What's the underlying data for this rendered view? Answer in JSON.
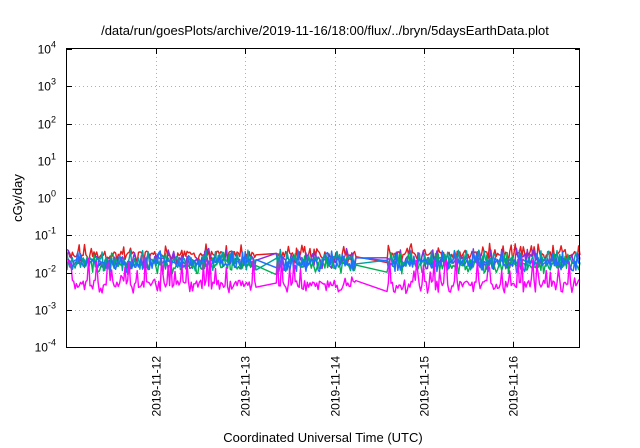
{
  "chart_data": {
    "type": "line",
    "title": "/data/run/goesPlots/archive/2019-11-16/18:00/flux/../bryn/5daysEarthData.plot",
    "xlabel": "Coordinated Universal Time (UTC)",
    "ylabel": "cGy/day",
    "yscale": "log",
    "ylim": [
      0.0001,
      10000
    ],
    "xlim": [
      "2019-11-11T00:00",
      "2019-11-16T18:00"
    ],
    "grid": true,
    "x_ticks": [
      "2019-11-12",
      "2019-11-13",
      "2019-11-14",
      "2019-11-15",
      "2019-11-16"
    ],
    "y_ticks": [
      {
        "base": "10",
        "exp": "-4"
      },
      {
        "base": "10",
        "exp": "-3"
      },
      {
        "base": "10",
        "exp": "-2"
      },
      {
        "base": "10",
        "exp": "-1"
      },
      {
        "base": "10",
        "exp": "0"
      },
      {
        "base": "10",
        "exp": "1"
      },
      {
        "base": "10",
        "exp": "2"
      },
      {
        "base": "10",
        "exp": "3"
      },
      {
        "base": "10",
        "exp": "4"
      }
    ],
    "gaps": [
      {
        "start": "2019-11-13T03:00",
        "end": "2019-11-13T08:00"
      },
      {
        "start": "2019-11-14T06:00",
        "end": "2019-11-14T14:00"
      }
    ],
    "series": [
      {
        "color": "#e41a1c",
        "level": 0.03,
        "peak": 0.06
      },
      {
        "color": "#8a2be2",
        "level": 0.022,
        "peak": 0.045
      },
      {
        "color": "#00b050",
        "level": 0.016,
        "peak": 0.035
      },
      {
        "color": "#00a0a0",
        "level": 0.02,
        "peak": 0.04
      },
      {
        "color": "#1e6fff",
        "level": 0.018,
        "peak": 0.04
      },
      {
        "color": "#ff00ff",
        "level": 0.005,
        "peak": 0.025
      }
    ]
  }
}
